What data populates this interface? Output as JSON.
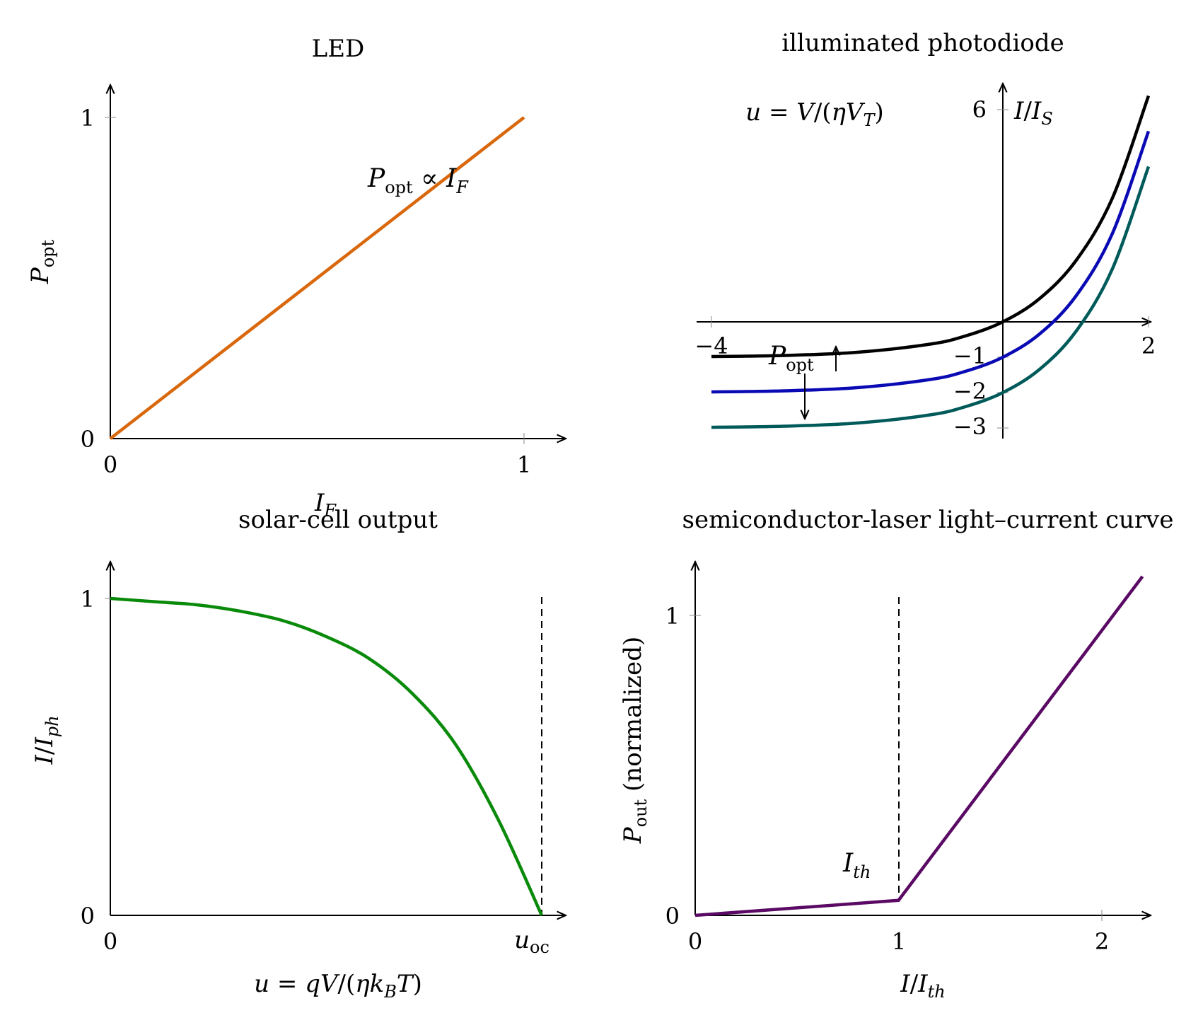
{
  "chart_data": [
    {
      "id": "led",
      "type": "line",
      "title": "LED",
      "xlabel": "I_F",
      "ylabel": "P_opt",
      "xlim": [
        0,
        1.1
      ],
      "ylim": [
        0,
        1.1
      ],
      "xticks": [
        0,
        1
      ],
      "xtick_labels": [
        "0",
        "1"
      ],
      "yticks": [
        0,
        1
      ],
      "ytick_labels": [
        "0",
        "1"
      ],
      "annotations": [
        "P_opt ∝ I_F"
      ],
      "series": [
        {
          "color": "#d9670b",
          "x": [
            0,
            1
          ],
          "y": [
            0,
            1
          ]
        }
      ]
    },
    {
      "id": "photodiode",
      "type": "line",
      "title": "illuminated photodiode",
      "xlabel": "u = V/(ηV_T)",
      "ylabel": "I/I_S",
      "xlim": [
        -4,
        2
      ],
      "ylim": [
        -3.3,
        6.5
      ],
      "xticks": [
        -4,
        2
      ],
      "xtick_labels": [
        "−4",
        "2"
      ],
      "yticks": [
        6,
        -1,
        -2,
        -3
      ],
      "ytick_labels": [
        "6",
        "−1",
        "−2",
        "−3"
      ],
      "annotations": [
        "P_opt ↑"
      ],
      "series": [
        {
          "color": "#000000",
          "offset": 0,
          "x": [
            -4,
            -3,
            -2,
            -1,
            -0.5,
            0,
            0.5,
            1,
            1.5,
            2
          ],
          "y": [
            -0.98,
            -0.95,
            -0.86,
            -0.63,
            -0.39,
            0,
            0.65,
            1.72,
            3.48,
            6.39
          ]
        },
        {
          "color": "#0a0ab4",
          "offset": -1,
          "x": [
            -4,
            -3,
            -2,
            -1,
            -0.5,
            0,
            0.5,
            1,
            1.5,
            2
          ],
          "y": [
            -1.98,
            -1.95,
            -1.86,
            -1.63,
            -1.39,
            -1.0,
            -0.35,
            0.72,
            2.48,
            5.39
          ]
        },
        {
          "color": "#005a5a",
          "offset": -2,
          "x": [
            -4,
            -3,
            -2,
            -1,
            -0.5,
            0,
            0.5,
            1,
            1.5,
            2
          ],
          "y": [
            -2.98,
            -2.95,
            -2.86,
            -2.63,
            -2.39,
            -2.0,
            -1.35,
            -0.28,
            1.48,
            4.39
          ]
        }
      ]
    },
    {
      "id": "solar",
      "type": "line",
      "title": "solar-cell output",
      "xlabel": "u = qV/(ηk_BT)",
      "ylabel": "I/I_ph",
      "xlim": [
        0,
        1.05
      ],
      "ylim": [
        0,
        1.1
      ],
      "xticks": [
        0,
        1
      ],
      "xtick_labels": [
        "0",
        "u_oc"
      ],
      "yticks": [
        0,
        1
      ],
      "ytick_labels": [
        "0",
        "1"
      ],
      "vline_x": 1,
      "series": [
        {
          "color": "#0a8a0a",
          "x": [
            0,
            0.1,
            0.2,
            0.3,
            0.4,
            0.5,
            0.6,
            0.7,
            0.8,
            0.9,
            1.0
          ],
          "y": [
            1.0,
            0.99,
            0.98,
            0.96,
            0.93,
            0.88,
            0.81,
            0.7,
            0.54,
            0.3,
            0.0
          ]
        }
      ]
    },
    {
      "id": "laser",
      "type": "line",
      "title": "semiconductor-laser light–current curve",
      "xlabel": "I/I_th",
      "ylabel": "P_out (normalized)",
      "xlim": [
        0,
        2.2
      ],
      "ylim": [
        0,
        1.15
      ],
      "xticks": [
        0,
        1,
        2
      ],
      "xtick_labels": [
        "0",
        "1",
        "2"
      ],
      "yticks": [
        0,
        1
      ],
      "ytick_labels": [
        "0",
        "1"
      ],
      "vline_x": 1,
      "annotations": [
        "I_th"
      ],
      "series": [
        {
          "color": "#5a0a64",
          "x": [
            0,
            1,
            2.2
          ],
          "y": [
            0,
            0.05,
            1.13
          ]
        }
      ]
    }
  ]
}
